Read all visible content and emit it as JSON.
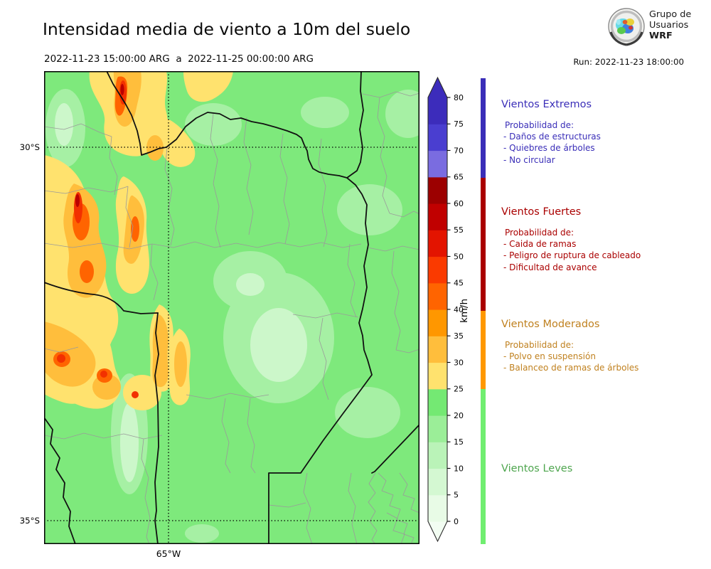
{
  "header": {
    "title": "Intensidad media de viento a 10m del suelo",
    "period": "2022-11-23 15:00:00 ARG  a  2022-11-25 00:00:00 ARG",
    "run_label": "Run: 2022-11-23 18:00:00",
    "logo_text": {
      "line1": "Grupo de",
      "line2": "Usuarios",
      "line3": "WRF"
    }
  },
  "map_axes": {
    "lat_label_30": "30°S",
    "lat_label_35": "35°S",
    "lon_label_65": "65°W"
  },
  "colorbar": {
    "unit": "km/h",
    "ticks": [
      "80",
      "75",
      "70",
      "65",
      "60",
      "55",
      "50",
      "45",
      "40",
      "35",
      "30",
      "25",
      "20",
      "15",
      "10",
      "5",
      "0"
    ],
    "max_value": 80,
    "segment_colors_top_to_bottom": [
      "#3c2cbb",
      "#4a3ed0",
      "#7a6ce0",
      "#9c0000",
      "#c00000",
      "#e31400",
      "#fa3a00",
      "#ff6400",
      "#ff9700",
      "#ffbe3c",
      "#ffe26e",
      "#74e973",
      "#9bee98",
      "#baf3b8",
      "#d4f8d2",
      "#e8fbe6"
    ],
    "over_arrow_color": "#3c2cbb",
    "under_arrow_color": "#f2fdf2"
  },
  "legend": {
    "sections": [
      {
        "title": "Vientos Extremos",
        "text_color": "#3a2eb8",
        "bar_color": "#3a2eb8",
        "subtitle": "Probabilidad de:",
        "items": [
          "- Daños de estructuras",
          "- Quiebres de árboles",
          "- No circular"
        ]
      },
      {
        "title": "Vientos Fuertes",
        "text_color": "#aa0000",
        "bar_color": "#aa0000",
        "subtitle": "Probabilidad de:",
        "items": [
          "- Caida de ramas",
          "- Peligro de ruptura de cableado",
          "- Dificultad de avance"
        ]
      },
      {
        "title": "Vientos Moderados",
        "text_color": "#c0811f",
        "bar_color": "#ff9800",
        "subtitle": "Probabilidad de:",
        "items": [
          "- Polvo en suspensión",
          "- Balanceo de ramas de árboles"
        ]
      },
      {
        "title": "Vientos Leves",
        "text_color": "#4fa64f",
        "bar_color": "#70ee70",
        "subtitle": "",
        "items": []
      }
    ]
  }
}
